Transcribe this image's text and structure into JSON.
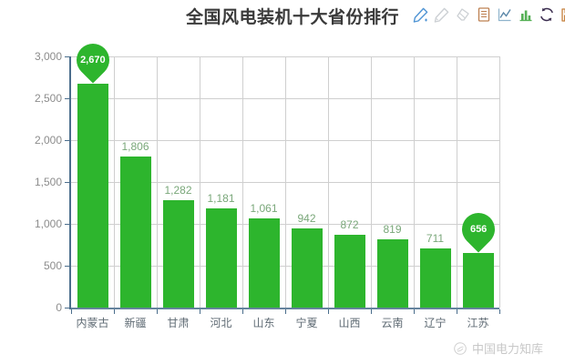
{
  "header": {
    "title": "全国风电装机十大省份排行",
    "toolbar_icons": [
      "edit-pencil",
      "edit-pencil-disabled",
      "clear-eraser",
      "data-view",
      "switch-to-line-chart",
      "switch-to-bar-chart",
      "restore",
      "save-as-image"
    ]
  },
  "chart_data": {
    "type": "bar",
    "title": "全国风电装机十大省份排行",
    "categories": [
      "内蒙古",
      "新疆",
      "甘肃",
      "河北",
      "山东",
      "宁夏",
      "山西",
      "云南",
      "辽宁",
      "江苏"
    ],
    "values": [
      2670,
      1806,
      1282,
      1181,
      1061,
      942,
      872,
      819,
      711,
      656
    ],
    "value_labels": [
      "2,670",
      "1,806",
      "1,282",
      "1,181",
      "1,061",
      "942",
      "872",
      "819",
      "711",
      "656"
    ],
    "ylim": [
      0,
      3000
    ],
    "y_ticks": [
      "0",
      "500",
      "1,000",
      "1,500",
      "2,000",
      "2,500",
      "3,000"
    ],
    "grid": true,
    "legend": "none",
    "mark_max": {
      "index": 0,
      "label": "2,670"
    },
    "mark_min": {
      "index": 9,
      "label": "656"
    },
    "colors": {
      "bar": "#2db52d",
      "pin": "#2db52d",
      "pin_text": "#ffffff",
      "value_label": "#79a779",
      "grid_line": "#cfcfcf",
      "axis_line": "#4a6d8c",
      "y_tick_label": "#8c8c8c",
      "x_tick_label": "#5f6b74"
    }
  },
  "watermark": {
    "text": "中国电力知库"
  }
}
